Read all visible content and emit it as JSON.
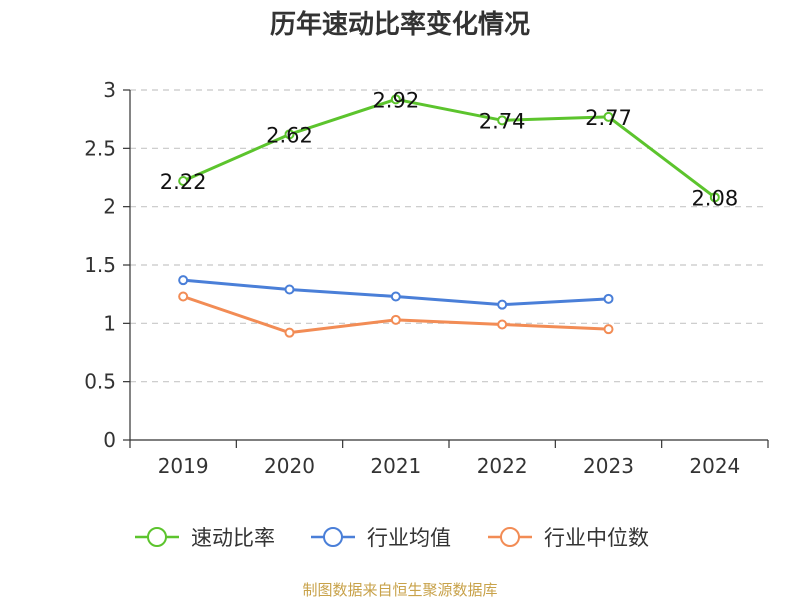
{
  "chart_data": {
    "type": "line",
    "title": "历年速动比率变化情况",
    "categories": [
      "2019",
      "2020",
      "2021",
      "2022",
      "2023",
      "2024"
    ],
    "ylim": [
      0,
      3
    ],
    "yticks": [
      "0",
      "0.5",
      "1",
      "1.5",
      "2",
      "2.5",
      "3"
    ],
    "grid": true,
    "legend_position": "bottom",
    "series": [
      {
        "name": "速动比率",
        "color": "#5cc42d",
        "values": [
          2.22,
          2.62,
          2.92,
          2.74,
          2.77,
          2.08
        ],
        "labels": [
          "2.22",
          "2.62",
          "2.92",
          "2.74",
          "2.77",
          "2.08"
        ]
      },
      {
        "name": "行业均值",
        "color": "#4a7fd8",
        "values": [
          1.37,
          1.29,
          1.23,
          1.16,
          1.21,
          null
        ]
      },
      {
        "name": "行业中位数",
        "color": "#f28c55",
        "values": [
          1.23,
          0.92,
          1.03,
          0.99,
          0.95,
          null
        ]
      }
    ]
  },
  "source_text": "制图数据来自恒生聚源数据库"
}
